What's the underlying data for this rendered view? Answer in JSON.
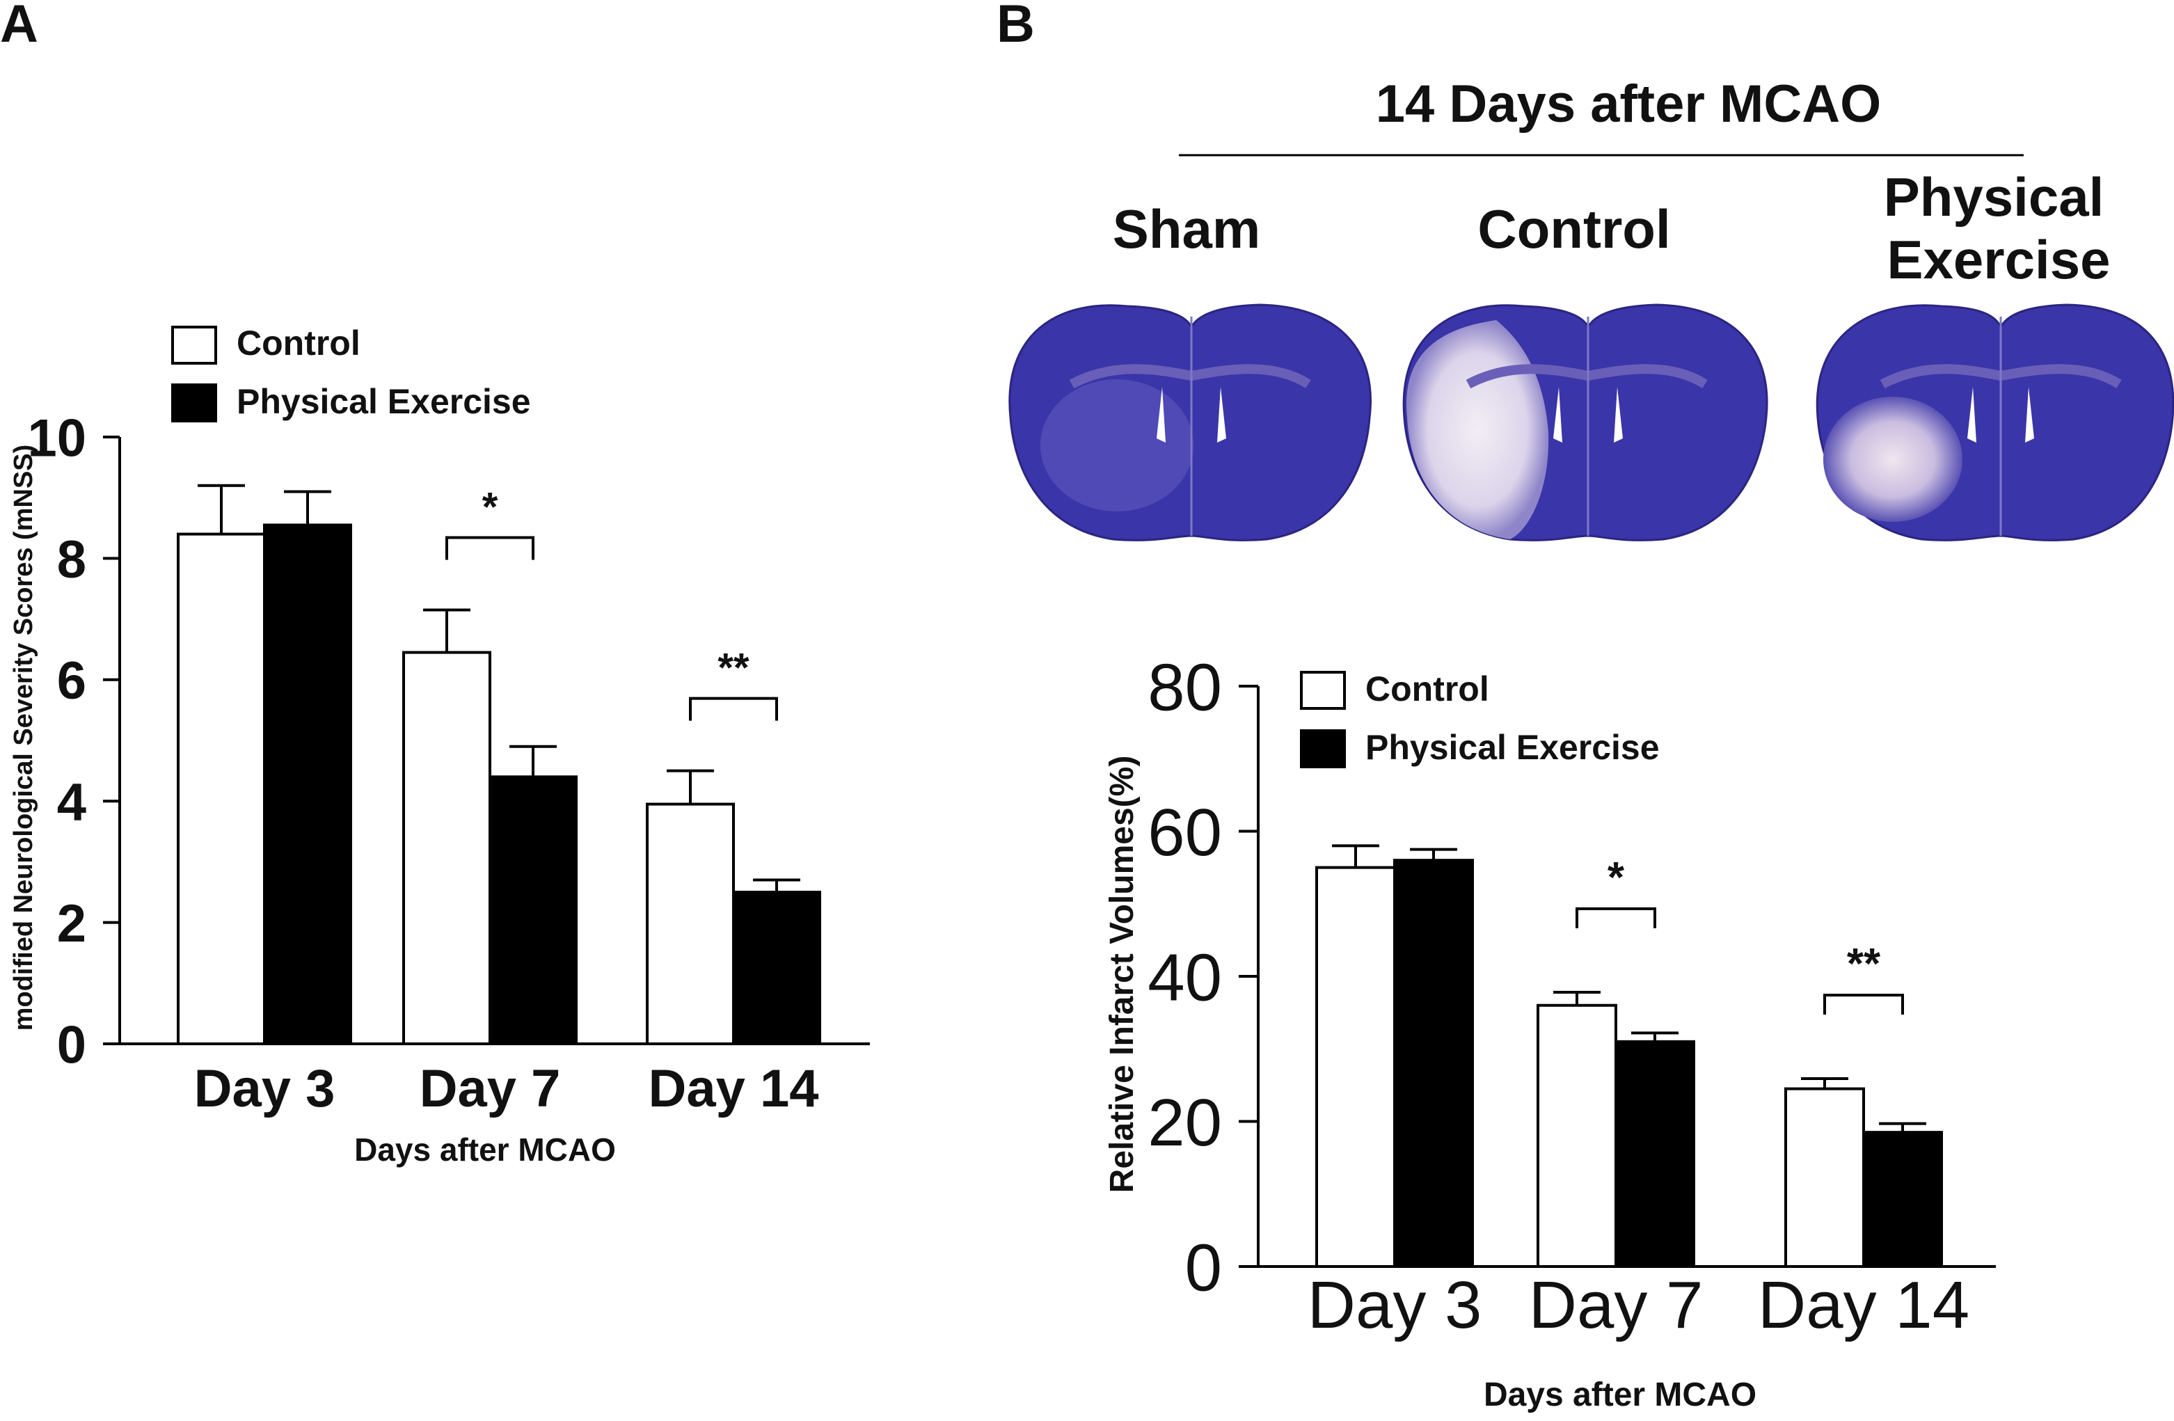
{
  "panel_a": {
    "letter": "A",
    "chart_data": {
      "type": "bar",
      "title": "",
      "xlabel": "Days after MCAO",
      "ylabel": "modified Neurological Severity Scores (mNSS)",
      "ylim": [
        0,
        10
      ],
      "yticks": [
        0,
        2,
        4,
        6,
        8,
        10
      ],
      "categories": [
        "Day 3",
        "Day 7",
        "Day 14"
      ],
      "series": [
        {
          "name": "Control",
          "values": [
            8.4,
            6.45,
            3.95
          ],
          "errors": [
            0.8,
            0.7,
            0.55
          ],
          "fill": "#ffffff"
        },
        {
          "name": "Physical Exercise",
          "values": [
            8.55,
            4.4,
            2.5
          ],
          "errors": [
            0.55,
            0.5,
            0.2
          ],
          "fill": "#000000"
        }
      ],
      "significance": [
        "",
        "*",
        "**"
      ],
      "legend": "top-left"
    }
  },
  "panel_b": {
    "letter": "B",
    "title": "14 Days after MCAO",
    "section_labels": {
      "sham": "Sham",
      "control": "Control",
      "exercise_line1": "Physical",
      "exercise_line2": "Exercise"
    },
    "stain_colors": {
      "tissue": "#3a35a8",
      "infarct": "#e9e3ef",
      "ventricle": "#ffffff",
      "edge": "#2b2580"
    },
    "chart_data": {
      "type": "bar",
      "title": "",
      "xlabel": "Days after MCAO",
      "ylabel": "Relative Infarct Volumes(%)",
      "ylim": [
        0,
        80
      ],
      "yticks": [
        0,
        20,
        40,
        60,
        80
      ],
      "categories": [
        "Day 3",
        "Day 7",
        "Day 14"
      ],
      "series": [
        {
          "name": "Control",
          "values": [
            55,
            36,
            24.5
          ],
          "errors": [
            3,
            1.8,
            1.4
          ],
          "fill": "#ffffff"
        },
        {
          "name": "Physical Exercise",
          "values": [
            56,
            31,
            18.5
          ],
          "errors": [
            1.5,
            1.2,
            1.2
          ],
          "fill": "#000000"
        }
      ],
      "significance": [
        "",
        "*",
        "**"
      ],
      "legend": "top-left"
    }
  }
}
